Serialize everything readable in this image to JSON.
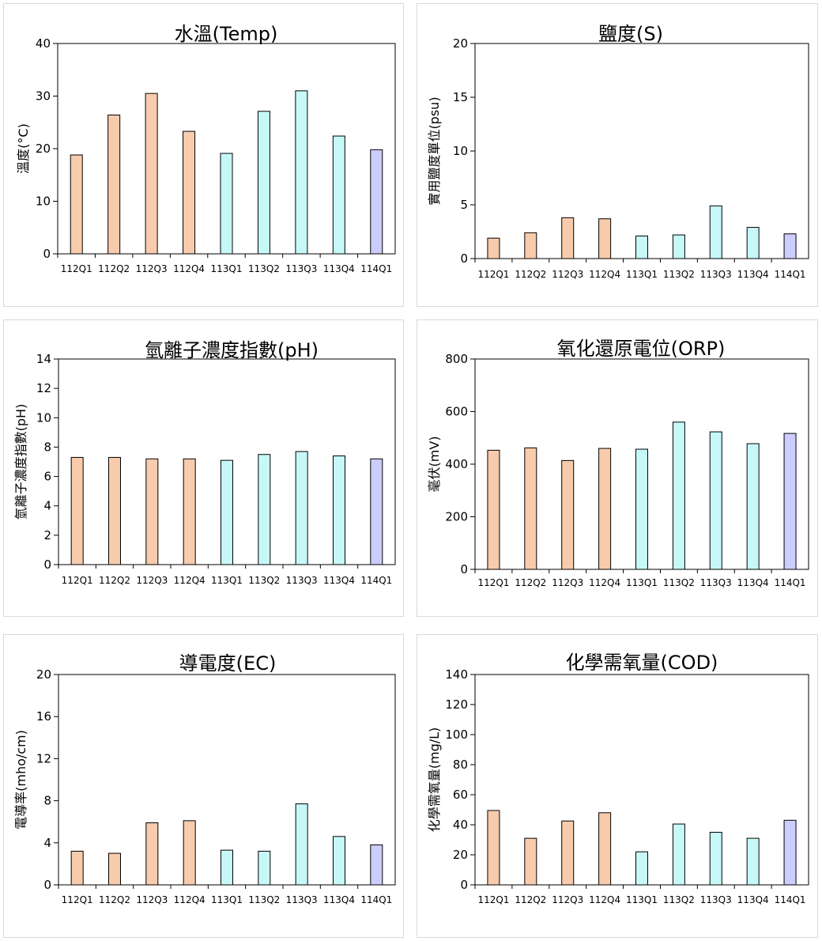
{
  "colors": {
    "y112": "#F8CBAD",
    "y113": "#C6F8F8",
    "y114": "#CCCCFF",
    "stroke": "#000000"
  },
  "categories": [
    "112Q1",
    "112Q2",
    "112Q3",
    "112Q4",
    "113Q1",
    "113Q2",
    "113Q3",
    "113Q4",
    "114Q1"
  ],
  "chart_data": [
    {
      "type": "bar",
      "title": "水溫(Temp)",
      "ylabel": "溫度(°C)",
      "ylim": [
        0,
        40
      ],
      "yticks": [
        0,
        10,
        20,
        30,
        40
      ],
      "values": [
        18.8,
        26.4,
        30.5,
        23.3,
        19.1,
        27.1,
        31.0,
        22.4,
        19.8
      ]
    },
    {
      "type": "bar",
      "title": "鹽度(S)",
      "ylabel": "實用鹽度單位(psu)",
      "ylim": [
        0,
        20
      ],
      "yticks": [
        0,
        5,
        10,
        15,
        20
      ],
      "values": [
        1.9,
        2.4,
        3.8,
        3.7,
        2.1,
        2.2,
        4.9,
        2.9,
        2.3
      ]
    },
    {
      "type": "bar",
      "title": "氫離子濃度指數(pH)",
      "ylabel": "氫離子濃度指數(pH)",
      "ylim": [
        0,
        14
      ],
      "yticks": [
        0,
        2,
        4,
        6,
        8,
        10,
        12,
        14
      ],
      "values": [
        7.3,
        7.3,
        7.2,
        7.2,
        7.1,
        7.5,
        7.7,
        7.4,
        7.2
      ]
    },
    {
      "type": "bar",
      "title": "氧化還原電位(ORP)",
      "ylabel": "毫伏(mV)",
      "ylim": [
        0,
        800
      ],
      "yticks": [
        0,
        200,
        400,
        600,
        800
      ],
      "values": [
        453,
        462,
        414,
        460,
        457,
        560,
        523,
        478,
        517
      ]
    },
    {
      "type": "bar",
      "title": "導電度(EC)",
      "ylabel": "電導率(mho/cm)",
      "ylim": [
        0,
        20
      ],
      "yticks": [
        0,
        4,
        8,
        12,
        16,
        20
      ],
      "values": [
        3.2,
        3.0,
        5.9,
        6.1,
        3.3,
        3.2,
        7.7,
        4.6,
        3.8
      ]
    },
    {
      "type": "bar",
      "title": "化學需氧量(COD)",
      "ylabel": "化學需氧量(mg/L)",
      "ylim": [
        0,
        140
      ],
      "yticks": [
        0,
        20,
        40,
        60,
        80,
        100,
        120,
        140
      ],
      "values": [
        49.5,
        31.0,
        42.5,
        48.0,
        22.0,
        40.5,
        35.0,
        31.0,
        43.0
      ]
    }
  ]
}
